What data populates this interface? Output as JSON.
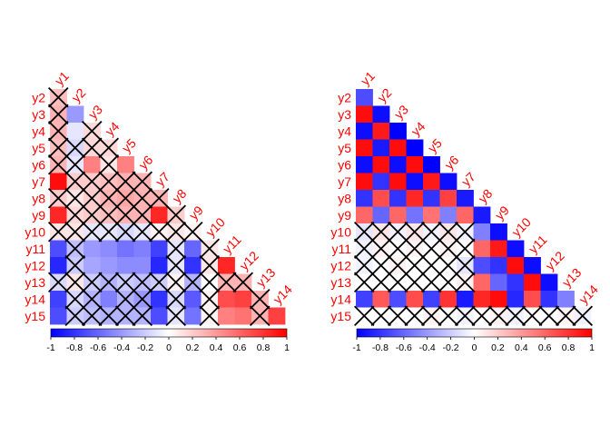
{
  "colors": {
    "negative": "#0000FF",
    "zero": "#FFFFFF",
    "positive": "#FF0000",
    "label": "#FF0000",
    "cross": "#000000"
  },
  "legend_ticks": [
    "-1",
    "-0.8",
    "-0.6",
    "-0.4",
    "-0.2",
    "0",
    "0.2",
    "0.4",
    "0.6",
    "0.8",
    "1"
  ],
  "chart_data": [
    {
      "type": "heatmap",
      "shape": "lower-triangle correlation matrix",
      "row_labels": [
        "y2",
        "y3",
        "y4",
        "y5",
        "y6",
        "y7",
        "y8",
        "y9",
        "y10",
        "y11",
        "y12",
        "y13",
        "y14",
        "y15"
      ],
      "col_labels": [
        "y1",
        "y2",
        "y3",
        "y4",
        "y5",
        "y6",
        "y7",
        "y8",
        "y9",
        "y10",
        "y11",
        "y12",
        "y13",
        "y14"
      ],
      "color_range": [
        -1,
        1
      ],
      "insignificant_marker": "cross",
      "values": [
        [
          0.25
        ],
        [
          0.3,
          -0.4
        ],
        [
          0.3,
          -0.1,
          0.15
        ],
        [
          0.25,
          -0.15,
          0.15,
          0.15
        ],
        [
          0.3,
          -0.1,
          0.5,
          0.1,
          0.5
        ],
        [
          0.95,
          0.2,
          0.2,
          0.25,
          0.3,
          0.3
        ],
        [
          0.2,
          0.1,
          0.2,
          0.3,
          0.35,
          0.3,
          0.3
        ],
        [
          0.85,
          0.15,
          0.2,
          0.25,
          0.3,
          0.3,
          0.85,
          0.2
        ],
        [
          0.1,
          0.1,
          -0.1,
          -0.1,
          -0.15,
          -0.1,
          0.05,
          0.1,
          0.05
        ],
        [
          -0.7,
          -0.25,
          -0.4,
          -0.45,
          -0.55,
          -0.5,
          -0.75,
          -0.1,
          -0.6,
          0.1
        ],
        [
          -0.85,
          -0.2,
          -0.35,
          -0.4,
          -0.45,
          -0.45,
          -0.85,
          -0.1,
          -0.8,
          0.1,
          0.85
        ],
        [
          -0.15,
          0.1,
          -0.2,
          -0.3,
          -0.2,
          -0.25,
          -0.2,
          0.05,
          -0.3,
          0.0,
          0.3,
          0.3
        ],
        [
          -0.75,
          -0.15,
          -0.3,
          -0.5,
          -0.3,
          -0.4,
          -0.8,
          -0.15,
          -0.65,
          0.05,
          0.7,
          0.75,
          0.3
        ],
        [
          -0.7,
          -0.2,
          -0.25,
          -0.3,
          -0.3,
          -0.3,
          -0.7,
          -0.1,
          -0.55,
          0.05,
          0.5,
          0.55,
          0.3,
          0.75
        ]
      ],
      "crossed": [
        [
          true
        ],
        [
          true,
          false
        ],
        [
          true,
          false,
          true
        ],
        [
          true,
          true,
          true,
          true
        ],
        [
          true,
          true,
          false,
          true,
          false
        ],
        [
          false,
          true,
          true,
          true,
          true,
          true
        ],
        [
          true,
          true,
          true,
          true,
          true,
          true,
          true
        ],
        [
          false,
          true,
          true,
          true,
          true,
          true,
          false,
          true
        ],
        [
          true,
          true,
          true,
          true,
          true,
          true,
          true,
          true,
          true
        ],
        [
          false,
          true,
          false,
          false,
          false,
          false,
          false,
          true,
          false,
          true
        ],
        [
          false,
          true,
          false,
          false,
          false,
          false,
          false,
          true,
          false,
          true,
          false
        ],
        [
          true,
          true,
          true,
          true,
          true,
          true,
          true,
          true,
          true,
          true,
          true,
          true
        ],
        [
          false,
          true,
          true,
          false,
          true,
          true,
          false,
          true,
          false,
          true,
          false,
          false,
          true
        ],
        [
          false,
          true,
          true,
          true,
          true,
          true,
          false,
          true,
          false,
          true,
          false,
          false,
          true,
          false
        ]
      ]
    },
    {
      "type": "heatmap",
      "shape": "lower-triangle correlation matrix",
      "row_labels": [
        "y2",
        "y3",
        "y4",
        "y5",
        "y6",
        "y7",
        "y8",
        "y9",
        "y10",
        "y11",
        "y12",
        "y13",
        "y14",
        "y15"
      ],
      "col_labels": [
        "y1",
        "y2",
        "y3",
        "y4",
        "y5",
        "y6",
        "y7",
        "y8",
        "y9",
        "y10",
        "y11",
        "y12",
        "y13",
        "y14"
      ],
      "color_range": [
        -1,
        1
      ],
      "insignificant_marker": "cross",
      "values": [
        [
          -0.7
        ],
        [
          0.95,
          -0.95
        ],
        [
          -0.95,
          0.9,
          -1.0
        ],
        [
          0.95,
          -0.9,
          0.95,
          -1.0
        ],
        [
          -0.95,
          0.95,
          -0.95,
          0.95,
          -1.0
        ],
        [
          0.95,
          -0.8,
          0.95,
          -0.95,
          0.9,
          -0.95
        ],
        [
          -0.8,
          0.7,
          -0.8,
          0.85,
          -0.8,
          0.75,
          -0.9
        ],
        [
          0.6,
          -0.6,
          0.6,
          -0.55,
          0.55,
          -0.5,
          0.6,
          -0.9
        ],
        [
          -0.1,
          0.1,
          -0.05,
          0.1,
          -0.05,
          0.1,
          -0.05,
          -0.5,
          -0.95
        ],
        [
          -0.05,
          0.05,
          0.0,
          0.05,
          0.0,
          0.05,
          0.0,
          0.6,
          0.9,
          -0.95
        ],
        [
          -0.05,
          0.0,
          0.05,
          0.0,
          0.0,
          0.0,
          -0.1,
          -0.7,
          -0.8,
          0.95,
          -0.95
        ],
        [
          0.0,
          0.0,
          0.0,
          0.0,
          0.0,
          0.0,
          0.05,
          0.6,
          -0.6,
          -0.8,
          0.95,
          -0.95
        ],
        [
          -0.75,
          0.65,
          -0.7,
          0.7,
          -0.75,
          0.8,
          -0.9,
          0.85,
          0.95,
          -0.85,
          0.7,
          -0.8,
          -0.5
        ],
        [
          0.0,
          0.0,
          0.0,
          0.0,
          0.05,
          0.0,
          -0.05,
          0.0,
          0.05,
          -0.05,
          0.0,
          0.0,
          0.05,
          -0.05
        ]
      ],
      "crossed": [
        [
          false
        ],
        [
          false,
          false
        ],
        [
          false,
          false,
          false
        ],
        [
          false,
          false,
          false,
          false
        ],
        [
          false,
          false,
          false,
          false,
          false
        ],
        [
          false,
          false,
          false,
          false,
          false,
          false
        ],
        [
          false,
          false,
          false,
          false,
          false,
          false,
          false
        ],
        [
          false,
          false,
          false,
          false,
          false,
          false,
          false,
          false
        ],
        [
          true,
          true,
          true,
          true,
          true,
          true,
          true,
          false,
          false
        ],
        [
          true,
          true,
          true,
          true,
          true,
          true,
          true,
          false,
          false,
          false
        ],
        [
          true,
          true,
          true,
          true,
          true,
          true,
          true,
          false,
          false,
          false,
          false
        ],
        [
          true,
          true,
          true,
          true,
          true,
          true,
          true,
          false,
          false,
          false,
          false,
          false
        ],
        [
          false,
          false,
          false,
          false,
          false,
          false,
          false,
          false,
          false,
          false,
          false,
          false,
          false
        ],
        [
          true,
          true,
          true,
          true,
          true,
          true,
          true,
          true,
          true,
          true,
          true,
          true,
          true,
          true
        ]
      ]
    }
  ]
}
